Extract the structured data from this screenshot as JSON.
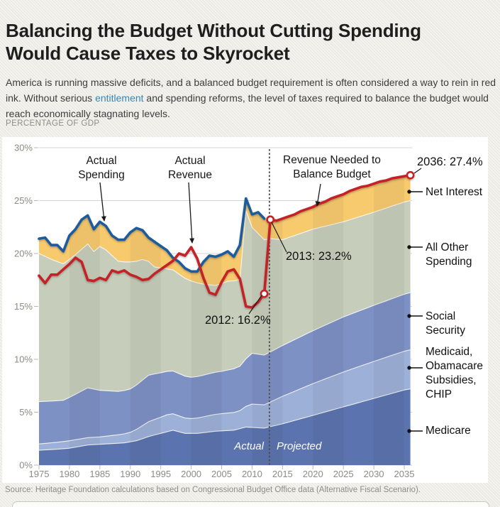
{
  "header": {
    "title_line1": "Balancing the Budget Without Cutting Spending",
    "title_line2": "Would Cause Taxes to Skyrocket"
  },
  "intro": {
    "text_before": "America is running massive deficits, and a balanced budget requirement is often considered a way to rein in red ink. Without serious ",
    "link_text": "entitlement",
    "text_after": " and spending reforms, the level of taxes required to balance the budget would reach economically stagnating levels."
  },
  "kicker": "PERCENTAGE OF GDP",
  "source": "Source: Heritage Foundation calculations based on Congressional Budget Office data (Alternative Fiscal Scenario).",
  "chart_data": {
    "type": "area",
    "stacked": true,
    "title": "Balancing the Budget Without Cutting Spending Would Cause Taxes to Skyrocket",
    "ylabel": "Percentage of GDP",
    "ylim": [
      0,
      30
    ],
    "grid": true,
    "y_ticks": [
      0,
      5,
      10,
      15,
      20,
      25,
      30
    ],
    "x_ticks": [
      1975,
      1980,
      1985,
      1990,
      1995,
      2000,
      2005,
      2010,
      2015,
      2020,
      2025,
      2030,
      2035
    ],
    "x_range": [
      1975,
      2036
    ],
    "divider_year": 2012.85,
    "divider_labels": {
      "left": "Actual",
      "right": "Projected"
    },
    "areas": [
      {
        "name": "Medicare",
        "color": "#5b73ae",
        "points": [
          [
            1975,
            1.4
          ],
          [
            1978,
            1.5
          ],
          [
            1980,
            1.6
          ],
          [
            1983,
            1.9
          ],
          [
            1986,
            2.0
          ],
          [
            1989,
            2.1
          ],
          [
            1991,
            2.3
          ],
          [
            1993,
            2.7
          ],
          [
            1995,
            3.0
          ],
          [
            1997,
            3.3
          ],
          [
            1999,
            3.0
          ],
          [
            2001,
            3.0
          ],
          [
            2004,
            3.2
          ],
          [
            2007,
            3.3
          ],
          [
            2009,
            3.6
          ],
          [
            2012,
            3.5
          ],
          [
            2015,
            3.9
          ],
          [
            2020,
            4.7
          ],
          [
            2025,
            5.5
          ],
          [
            2030,
            6.3
          ],
          [
            2035,
            7.1
          ],
          [
            2036,
            7.2
          ]
        ]
      },
      {
        "name": "Medicaid, Obamacare Subsidies, CHIP",
        "color": "#9db0d7",
        "points": [
          [
            1975,
            0.6
          ],
          [
            1980,
            0.7
          ],
          [
            1985,
            0.7
          ],
          [
            1988,
            0.8
          ],
          [
            1990,
            0.9
          ],
          [
            1993,
            1.4
          ],
          [
            1996,
            1.6
          ],
          [
            2000,
            1.4
          ],
          [
            2004,
            1.6
          ],
          [
            2008,
            1.7
          ],
          [
            2010,
            2.2
          ],
          [
            2012,
            2.2
          ],
          [
            2015,
            2.6
          ],
          [
            2020,
            3.0
          ],
          [
            2025,
            3.3
          ],
          [
            2030,
            3.5
          ],
          [
            2036,
            3.7
          ]
        ]
      },
      {
        "name": "Social Security",
        "color": "#7e91c4",
        "points": [
          [
            1975,
            4.0
          ],
          [
            1979,
            3.9
          ],
          [
            1981,
            4.3
          ],
          [
            1983,
            4.7
          ],
          [
            1985,
            4.4
          ],
          [
            1988,
            4.1
          ],
          [
            1990,
            4.1
          ],
          [
            1993,
            4.4
          ],
          [
            1996,
            4.1
          ],
          [
            2000,
            3.9
          ],
          [
            2005,
            4.0
          ],
          [
            2008,
            4.2
          ],
          [
            2010,
            4.8
          ],
          [
            2012,
            4.7
          ],
          [
            2015,
            4.8
          ],
          [
            2020,
            5.0
          ],
          [
            2025,
            5.2
          ],
          [
            2030,
            5.3
          ],
          [
            2036,
            5.4
          ]
        ]
      },
      {
        "name": "All Other Spending",
        "color": "#c7cdbb",
        "points": [
          [
            1975,
            14.0
          ],
          [
            1977,
            13.4
          ],
          [
            1979,
            12.9
          ],
          [
            1981,
            13.2
          ],
          [
            1983,
            13.6
          ],
          [
            1984,
            13.0
          ],
          [
            1985,
            13.6
          ],
          [
            1986,
            13.3
          ],
          [
            1988,
            12.3
          ],
          [
            1990,
            12.0
          ],
          [
            1992,
            11.4
          ],
          [
            1994,
            10.1
          ],
          [
            1996,
            9.7
          ],
          [
            1998,
            9.4
          ],
          [
            2000,
            9.1
          ],
          [
            2002,
            8.6
          ],
          [
            2004,
            8.2
          ],
          [
            2006,
            8.4
          ],
          [
            2008,
            8.2
          ],
          [
            2009,
            14.0
          ],
          [
            2010,
            11.9
          ],
          [
            2012,
            10.9
          ],
          [
            2013,
            10.7
          ],
          [
            2015,
            10.0
          ],
          [
            2020,
            9.6
          ],
          [
            2025,
            9.0
          ],
          [
            2030,
            8.8
          ],
          [
            2036,
            8.7
          ]
        ]
      },
      {
        "name": "Net Interest",
        "color": "#f8ca6e",
        "top_follows_total": true,
        "points": [
          [
            1975,
            1.4
          ],
          [
            1980,
            2.3
          ],
          [
            1983,
            2.7
          ],
          [
            1986,
            2.2
          ],
          [
            1989,
            2.7
          ],
          [
            1992,
            2.9
          ],
          [
            1995,
            2.1
          ],
          [
            1998,
            1.6
          ],
          [
            2000,
            0.9
          ],
          [
            2003,
            2.9
          ],
          [
            2006,
            2.8
          ],
          [
            2008,
            2.6
          ],
          [
            2009,
            1.2
          ],
          [
            2012,
            2.0
          ],
          [
            2013,
            1.8
          ],
          [
            2015,
            2.0
          ],
          [
            2020,
            2.1
          ],
          [
            2025,
            2.6
          ],
          [
            2030,
            2.7
          ],
          [
            2036,
            2.4
          ]
        ]
      }
    ],
    "lines": {
      "actual_spending": {
        "label": "Actual Spending",
        "color": "#1e5b9d",
        "start_year": 1975,
        "values": [
          21.4,
          21.5,
          20.8,
          20.8,
          20.2,
          21.7,
          22.3,
          23.2,
          23.6,
          22.3,
          23.0,
          22.6,
          21.7,
          21.3,
          21.3,
          22.0,
          22.4,
          22.2,
          21.5,
          21.1,
          20.7,
          20.3,
          19.6,
          19.2,
          18.6,
          18.3,
          18.3,
          19.2,
          19.8,
          19.7,
          19.9,
          20.2,
          19.7,
          20.8,
          25.2,
          23.7,
          23.9,
          23.3
        ]
      },
      "actual_revenue": {
        "label": "Actual Revenue",
        "color": "#c32127",
        "start_year": 1975,
        "values": [
          17.9,
          17.2,
          18.0,
          18.0,
          18.5,
          19.0,
          19.6,
          19.2,
          17.5,
          17.4,
          17.7,
          17.5,
          18.4,
          18.2,
          18.4,
          18.0,
          17.8,
          17.5,
          17.6,
          18.1,
          18.5,
          18.9,
          19.3,
          20.0,
          19.8,
          20.6,
          19.5,
          17.7,
          16.3,
          16.1,
          17.3,
          18.3,
          18.5,
          17.6,
          15.0,
          14.9,
          15.4,
          16.2
        ]
      },
      "revenue_needed": {
        "label": "Revenue Needed to Balance Budget",
        "color": "#c32127",
        "start_year": 2012,
        "values": [
          16.2,
          23.2,
          23.1,
          23.3,
          23.5,
          23.7,
          24.0,
          24.2,
          24.4,
          24.7,
          24.9,
          25.2,
          25.4,
          25.6,
          25.9,
          26.1,
          26.3,
          26.4,
          26.6,
          26.8,
          26.9,
          27.1,
          27.2,
          27.3,
          27.4
        ]
      }
    },
    "markers": [
      {
        "year": 2012,
        "value": 16.2,
        "label": "2012: 16.2%"
      },
      {
        "year": 2013,
        "value": 23.2,
        "label": "2013: 23.2%"
      },
      {
        "year": 2036,
        "value": 27.4,
        "label": "2036: 27.4%"
      }
    ],
    "side_labels": [
      "Net Interest",
      "All Other Spending",
      "Social Security",
      "Medicaid, Obamacare Subsidies, CHIP",
      "Medicare"
    ]
  }
}
